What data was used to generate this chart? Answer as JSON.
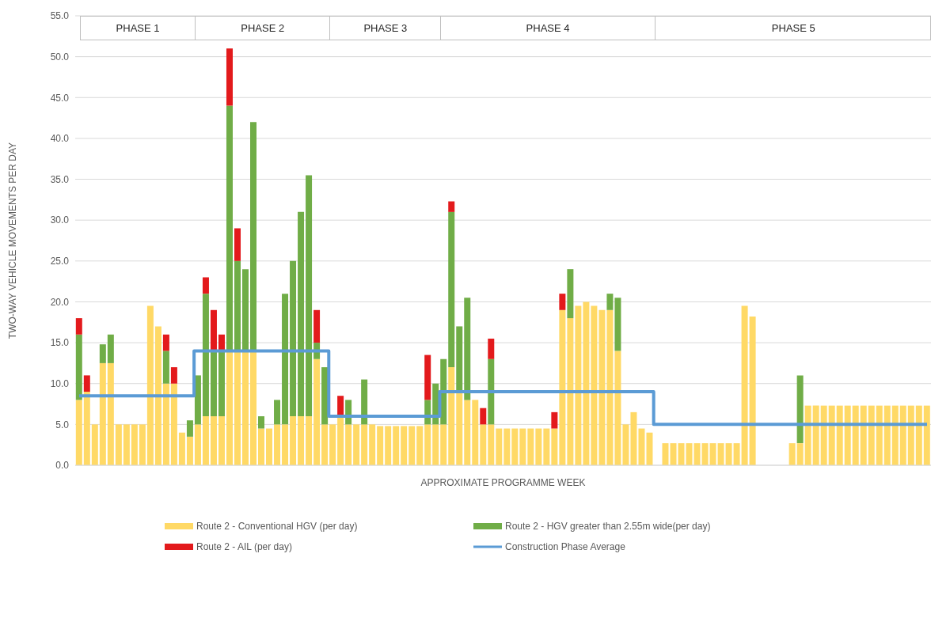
{
  "chart_data": {
    "type": "bar",
    "stacked": true,
    "ylabel": "TWO-WAY VEHICLE MOVEMENTS PER DAY",
    "xlabel": "APPROXIMATE PROGRAMME WEEK",
    "annotations": [
      "PHASE 1",
      "PHASE 2",
      "PHASE 3",
      "PHASE 4",
      "PHASE 5"
    ],
    "categories": [
      null,
      null,
      null,
      null,
      null,
      null,
      null,
      null,
      null,
      null,
      null,
      null,
      null,
      null,
      null,
      null,
      null,
      null,
      null,
      null,
      null,
      null,
      null,
      null,
      null,
      null,
      null,
      null,
      null,
      null,
      null,
      null,
      null,
      null,
      null,
      null,
      null,
      null,
      null,
      null,
      null,
      null,
      null,
      null,
      null,
      null,
      null,
      null,
      null,
      null,
      null,
      null,
      null,
      null,
      null,
      null,
      null,
      null,
      null,
      null,
      null,
      null,
      null,
      null,
      null,
      null,
      null,
      null,
      null,
      null,
      null,
      null,
      null,
      null,
      null,
      null,
      null,
      null,
      null,
      null,
      null,
      null,
      null,
      null,
      null,
      null,
      null,
      null,
      null,
      null,
      null,
      null,
      null,
      null,
      null,
      null,
      null,
      null,
      null,
      null,
      null,
      null,
      null,
      null,
      null,
      null,
      null,
      null
    ],
    "series": [
      {
        "name": "Route 2 - Conventional HGV (per day)",
        "color": "#ffd966",
        "values": [
          8,
          9,
          5,
          12.5,
          12.5,
          5,
          5,
          5,
          5,
          19.5,
          17,
          10,
          10,
          4,
          3.5,
          5,
          6,
          6,
          6,
          14,
          14,
          14,
          14,
          4.5,
          4.5,
          5,
          5,
          6,
          6,
          6,
          13,
          5,
          5,
          6,
          5,
          5,
          5,
          5,
          4.8,
          4.8,
          4.8,
          4.8,
          4.8,
          4.8,
          5,
          5,
          5,
          12,
          9,
          8,
          8,
          5,
          5,
          4.5,
          4.5,
          4.5,
          4.5,
          4.5,
          4.5,
          4.5,
          4.5,
          19,
          18,
          19.5,
          20,
          19.5,
          19,
          19,
          14,
          5,
          6.5,
          4.5,
          4,
          null,
          2.7,
          2.7,
          2.7,
          2.7,
          2.7,
          2.7,
          2.7,
          2.7,
          2.7,
          2.7,
          19.5,
          18.2,
          null,
          null,
          null,
          null,
          2.7,
          2.7,
          7.3,
          7.3,
          7.3,
          7.3,
          7.3,
          7.3,
          7.3,
          7.3,
          7.3,
          7.3,
          7.3,
          7.3,
          7.3,
          7.3,
          7.3,
          7.3
        ]
      },
      {
        "name": "Route 2 - HGV greater than 2.55m wide(per day)",
        "color": "#70ad47",
        "values": [
          8,
          null,
          null,
          2.3,
          3.5,
          null,
          null,
          null,
          null,
          null,
          null,
          4,
          null,
          null,
          2,
          6,
          15,
          8,
          8,
          30,
          11,
          10,
          28,
          1.5,
          null,
          3,
          16,
          19,
          25,
          29.5,
          2,
          7,
          null,
          null,
          3,
          null,
          5.5,
          null,
          null,
          null,
          null,
          null,
          null,
          null,
          3,
          5,
          8,
          19,
          8,
          12.5,
          null,
          null,
          8,
          null,
          null,
          null,
          null,
          null,
          null,
          null,
          null,
          null,
          6,
          null,
          null,
          null,
          null,
          2,
          6.5,
          null,
          null,
          null,
          null,
          null,
          null,
          null,
          null,
          null,
          null,
          null,
          null,
          null,
          null,
          null,
          null,
          null,
          null,
          null,
          null,
          null,
          null,
          8.3,
          null,
          null,
          null,
          null,
          null,
          null,
          null,
          null,
          null,
          null,
          null,
          null,
          null,
          null,
          null,
          null
        ]
      },
      {
        "name": "Route 2 - AIL (per day)",
        "color": "#e31a1c",
        "values": [
          2,
          2,
          null,
          null,
          null,
          null,
          null,
          null,
          null,
          null,
          null,
          2,
          2,
          null,
          null,
          null,
          2,
          5,
          2,
          7,
          4,
          null,
          null,
          null,
          null,
          null,
          null,
          null,
          null,
          null,
          4,
          null,
          null,
          2.5,
          null,
          null,
          null,
          null,
          null,
          null,
          null,
          null,
          null,
          null,
          5.5,
          null,
          null,
          1.3,
          null,
          null,
          null,
          2,
          2.5,
          null,
          null,
          null,
          null,
          null,
          null,
          null,
          2,
          2,
          null,
          null,
          null,
          null,
          null,
          null,
          null,
          null,
          null,
          null,
          null,
          null,
          null,
          null,
          null,
          null,
          null,
          null,
          null,
          null,
          null,
          null,
          null,
          null,
          null,
          null,
          null,
          null,
          null,
          null,
          null,
          null,
          null,
          null,
          null,
          null,
          null,
          null,
          null,
          null,
          null,
          null,
          null,
          null,
          null,
          null
        ]
      },
      {
        "name": "Construction Phase Average",
        "type": "step",
        "color": "#5b9bd5",
        "values": [
          8.5,
          8.5,
          8.5,
          8.5,
          8.5,
          8.5,
          8.5,
          8.5,
          8.5,
          8.5,
          8.5,
          8.5,
          8.5,
          8.5,
          8.5,
          14,
          14,
          14,
          14,
          14,
          14,
          14,
          14,
          14,
          14,
          14,
          14,
          14,
          14,
          14,
          14,
          14,
          6,
          6,
          6,
          6,
          6,
          6,
          6,
          6,
          6,
          6,
          6,
          6,
          6,
          6,
          9,
          9,
          9,
          9,
          9,
          9,
          9,
          9,
          9,
          9,
          9,
          9,
          9,
          9,
          9,
          9,
          9,
          9,
          9,
          9,
          9,
          9,
          9,
          9,
          9,
          9,
          9,
          5,
          5,
          5,
          5,
          5,
          5,
          5,
          5,
          5,
          5,
          5,
          5,
          5,
          5,
          5,
          5,
          5,
          5,
          5,
          5,
          5,
          5,
          5,
          5,
          5,
          5,
          5,
          5,
          5,
          5,
          5,
          5,
          5,
          5,
          5
        ]
      }
    ],
    "ylim": [
      0,
      55
    ],
    "yticks": [
      {
        "value": 0,
        "label": "0.0"
      },
      {
        "value": 5,
        "label": "5.0"
      },
      {
        "value": 10,
        "label": "10.0"
      },
      {
        "value": 15,
        "label": "15.0"
      },
      {
        "value": 20,
        "label": "20.0"
      },
      {
        "value": 25,
        "label": "25.0"
      },
      {
        "value": 30,
        "label": "30.0"
      },
      {
        "value": 35,
        "label": "35.0"
      },
      {
        "value": 40,
        "label": "40.0"
      },
      {
        "value": 45,
        "label": "45.0"
      },
      {
        "value": 50,
        "label": "50.0"
      },
      {
        "value": 55,
        "label": "55.0"
      }
    ],
    "grid": "y",
    "tick_labels": "y",
    "legend": "bottom"
  }
}
